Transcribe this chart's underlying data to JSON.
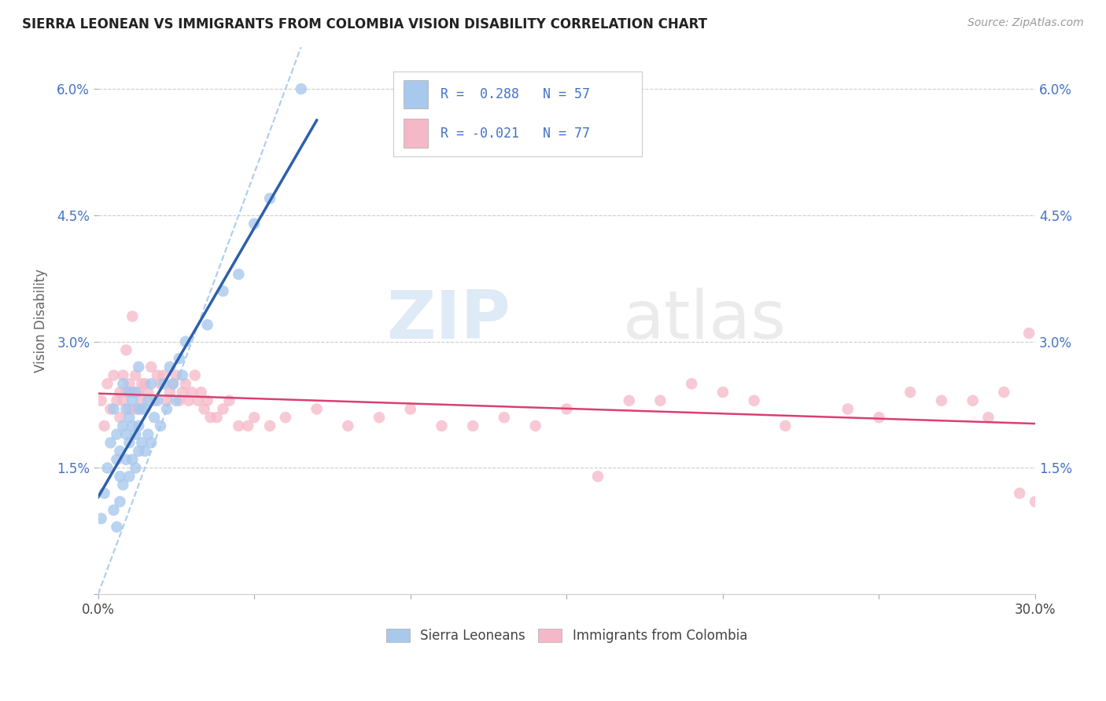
{
  "title": "SIERRA LEONEAN VS IMMIGRANTS FROM COLOMBIA VISION DISABILITY CORRELATION CHART",
  "source": "Source: ZipAtlas.com",
  "ylabel": "Vision Disability",
  "x_min": 0.0,
  "x_max": 0.3,
  "y_min": 0.0,
  "y_max": 0.065,
  "x_ticks": [
    0.0,
    0.05,
    0.1,
    0.15,
    0.2,
    0.25,
    0.3
  ],
  "y_ticks": [
    0.0,
    0.015,
    0.03,
    0.045,
    0.06
  ],
  "legend1_label": "R =  0.288   N = 57",
  "legend2_label": "R = -0.021   N = 77",
  "legend_bottom1": "Sierra Leoneans",
  "legend_bottom2": "Immigrants from Colombia",
  "blue_color": "#A8C8ED",
  "pink_color": "#F5B8C8",
  "blue_line_color": "#2C5FAC",
  "pink_line_color": "#D94070",
  "diagonal_line_color": "#AACCEE",
  "watermark_zip": "ZIP",
  "watermark_atlas": "atlas",
  "sl_r": 0.288,
  "col_r": -0.021,
  "sl_n": 57,
  "col_n": 77,
  "sierra_leone_x": [
    0.001,
    0.002,
    0.003,
    0.004,
    0.005,
    0.005,
    0.006,
    0.006,
    0.006,
    0.007,
    0.007,
    0.007,
    0.008,
    0.008,
    0.008,
    0.009,
    0.009,
    0.009,
    0.01,
    0.01,
    0.01,
    0.01,
    0.011,
    0.011,
    0.011,
    0.012,
    0.012,
    0.012,
    0.013,
    0.013,
    0.013,
    0.013,
    0.014,
    0.014,
    0.015,
    0.015,
    0.016,
    0.016,
    0.017,
    0.017,
    0.018,
    0.019,
    0.02,
    0.021,
    0.022,
    0.023,
    0.024,
    0.025,
    0.026,
    0.027,
    0.028,
    0.035,
    0.04,
    0.045,
    0.05,
    0.055,
    0.065
  ],
  "sierra_leone_y": [
    0.009,
    0.012,
    0.015,
    0.018,
    0.022,
    0.01,
    0.016,
    0.019,
    0.008,
    0.011,
    0.014,
    0.017,
    0.013,
    0.02,
    0.025,
    0.016,
    0.019,
    0.022,
    0.014,
    0.018,
    0.021,
    0.024,
    0.016,
    0.02,
    0.023,
    0.015,
    0.019,
    0.024,
    0.017,
    0.02,
    0.022,
    0.027,
    0.018,
    0.022,
    0.017,
    0.022,
    0.019,
    0.023,
    0.018,
    0.025,
    0.021,
    0.023,
    0.02,
    0.025,
    0.022,
    0.027,
    0.025,
    0.023,
    0.028,
    0.026,
    0.03,
    0.032,
    0.036,
    0.038,
    0.044,
    0.047,
    0.06
  ],
  "colombia_x": [
    0.001,
    0.002,
    0.003,
    0.004,
    0.005,
    0.006,
    0.007,
    0.007,
    0.008,
    0.008,
    0.009,
    0.009,
    0.01,
    0.01,
    0.011,
    0.011,
    0.012,
    0.012,
    0.013,
    0.014,
    0.014,
    0.015,
    0.016,
    0.017,
    0.018,
    0.019,
    0.02,
    0.021,
    0.022,
    0.023,
    0.024,
    0.025,
    0.026,
    0.027,
    0.028,
    0.029,
    0.03,
    0.031,
    0.032,
    0.033,
    0.034,
    0.035,
    0.036,
    0.038,
    0.04,
    0.042,
    0.045,
    0.048,
    0.05,
    0.055,
    0.06,
    0.07,
    0.08,
    0.09,
    0.1,
    0.11,
    0.12,
    0.13,
    0.14,
    0.15,
    0.16,
    0.17,
    0.18,
    0.19,
    0.2,
    0.21,
    0.22,
    0.24,
    0.25,
    0.26,
    0.27,
    0.28,
    0.285,
    0.29,
    0.295,
    0.298,
    0.3
  ],
  "colombia_y": [
    0.023,
    0.02,
    0.025,
    0.022,
    0.026,
    0.023,
    0.024,
    0.021,
    0.026,
    0.023,
    0.024,
    0.029,
    0.022,
    0.025,
    0.024,
    0.033,
    0.022,
    0.026,
    0.024,
    0.025,
    0.023,
    0.025,
    0.024,
    0.027,
    0.023,
    0.026,
    0.025,
    0.026,
    0.023,
    0.024,
    0.025,
    0.026,
    0.023,
    0.024,
    0.025,
    0.023,
    0.024,
    0.026,
    0.023,
    0.024,
    0.022,
    0.023,
    0.021,
    0.021,
    0.022,
    0.023,
    0.02,
    0.02,
    0.021,
    0.02,
    0.021,
    0.022,
    0.02,
    0.021,
    0.022,
    0.02,
    0.02,
    0.021,
    0.02,
    0.022,
    0.014,
    0.023,
    0.023,
    0.025,
    0.024,
    0.023,
    0.02,
    0.022,
    0.021,
    0.024,
    0.023,
    0.023,
    0.021,
    0.024,
    0.012,
    0.031,
    0.011
  ]
}
